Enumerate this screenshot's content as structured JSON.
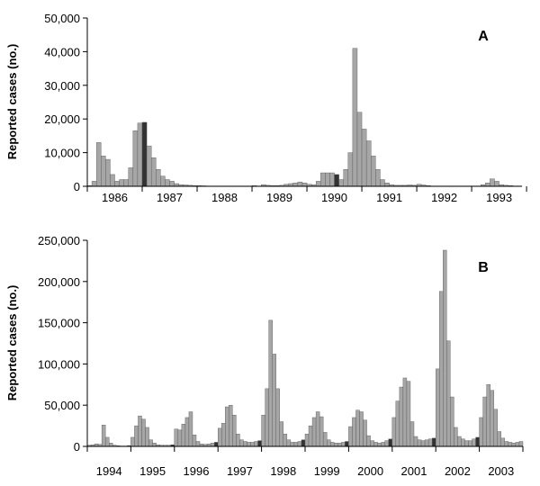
{
  "chart_data": [
    {
      "type": "bar",
      "panel_label": "A",
      "ylabel": "Reported cases (no.)",
      "ylim": [
        0,
        50000
      ],
      "yticks": [
        0,
        10000,
        20000,
        30000,
        40000,
        50000
      ],
      "ytick_labels": [
        "0",
        "10,000",
        "20,000",
        "30,000",
        "40,000",
        "50,000"
      ],
      "year_labels": [
        "1986",
        "1987",
        "1988",
        "1989",
        "1990",
        "1991",
        "1992",
        "1993"
      ],
      "highlight_color": "#333333",
      "bar_color": "#a6a6a6",
      "highlighted_months": [
        12,
        54
      ],
      "values": [
        200,
        1500,
        13000,
        9000,
        8000,
        3500,
        1500,
        2000,
        2000,
        5500,
        16500,
        18800,
        19000,
        12000,
        8500,
        5000,
        3000,
        2000,
        1500,
        800,
        500,
        400,
        300,
        200,
        200,
        150,
        100,
        100,
        100,
        100,
        100,
        100,
        100,
        100,
        100,
        100,
        200,
        100,
        500,
        300,
        200,
        200,
        300,
        600,
        800,
        1000,
        1300,
        1000,
        600,
        500,
        1500,
        4000,
        4000,
        4000,
        3500,
        2000,
        5000,
        10000,
        41000,
        22000,
        17000,
        13500,
        9000,
        5000,
        2000,
        1000,
        500,
        300,
        300,
        300,
        400,
        300,
        600,
        400,
        200,
        100,
        100,
        100,
        100,
        100,
        100,
        100,
        100,
        100,
        100,
        100,
        500,
        1000,
        2200,
        1500,
        500,
        300,
        200,
        100,
        100
      ]
    },
    {
      "type": "bar",
      "panel_label": "B",
      "ylabel": "Reported cases (no.)",
      "ylim": [
        0,
        250000
      ],
      "yticks": [
        0,
        50000,
        100000,
        150000,
        200000,
        250000
      ],
      "ytick_labels": [
        "0",
        "50,000",
        "100,000",
        "150,000",
        "200,000",
        "250,000"
      ],
      "year_labels": [
        "1994",
        "1995",
        "1996",
        "1997",
        "1998",
        "1999",
        "2000",
        "2001",
        "2002",
        "2003"
      ],
      "highlight_color": "#333333",
      "bar_color": "#a6a6a6",
      "highlighted_months": [
        11,
        23,
        35,
        47,
        59,
        71,
        83,
        95,
        107
      ],
      "values": [
        1500,
        2000,
        3000,
        2500,
        26000,
        11000,
        4000,
        1500,
        800,
        500,
        500,
        1000,
        11000,
        25000,
        37000,
        33000,
        23000,
        8000,
        4000,
        2000,
        1500,
        1500,
        1500,
        2000,
        21000,
        20000,
        27000,
        35000,
        42000,
        14000,
        6000,
        3000,
        2500,
        3000,
        4000,
        5000,
        22000,
        28000,
        48000,
        50000,
        38000,
        15000,
        8000,
        6000,
        5000,
        5000,
        6000,
        7000,
        38000,
        70000,
        153000,
        112000,
        70000,
        30000,
        15000,
        8000,
        5000,
        5000,
        6000,
        8000,
        15000,
        25000,
        35000,
        42000,
        36000,
        17000,
        8000,
        5000,
        4000,
        4000,
        5000,
        6000,
        24000,
        35000,
        44000,
        42000,
        32000,
        13000,
        7000,
        5000,
        4000,
        5000,
        7000,
        9000,
        35000,
        55000,
        72000,
        83000,
        79000,
        30000,
        12000,
        8000,
        7000,
        8000,
        9000,
        10000,
        94000,
        188000,
        238000,
        128000,
        60000,
        23000,
        12000,
        9000,
        7000,
        7000,
        9000,
        11000,
        35000,
        60000,
        75000,
        68000,
        45000,
        18000,
        10000,
        6000,
        5000,
        4000,
        5000,
        6000
      ]
    }
  ]
}
